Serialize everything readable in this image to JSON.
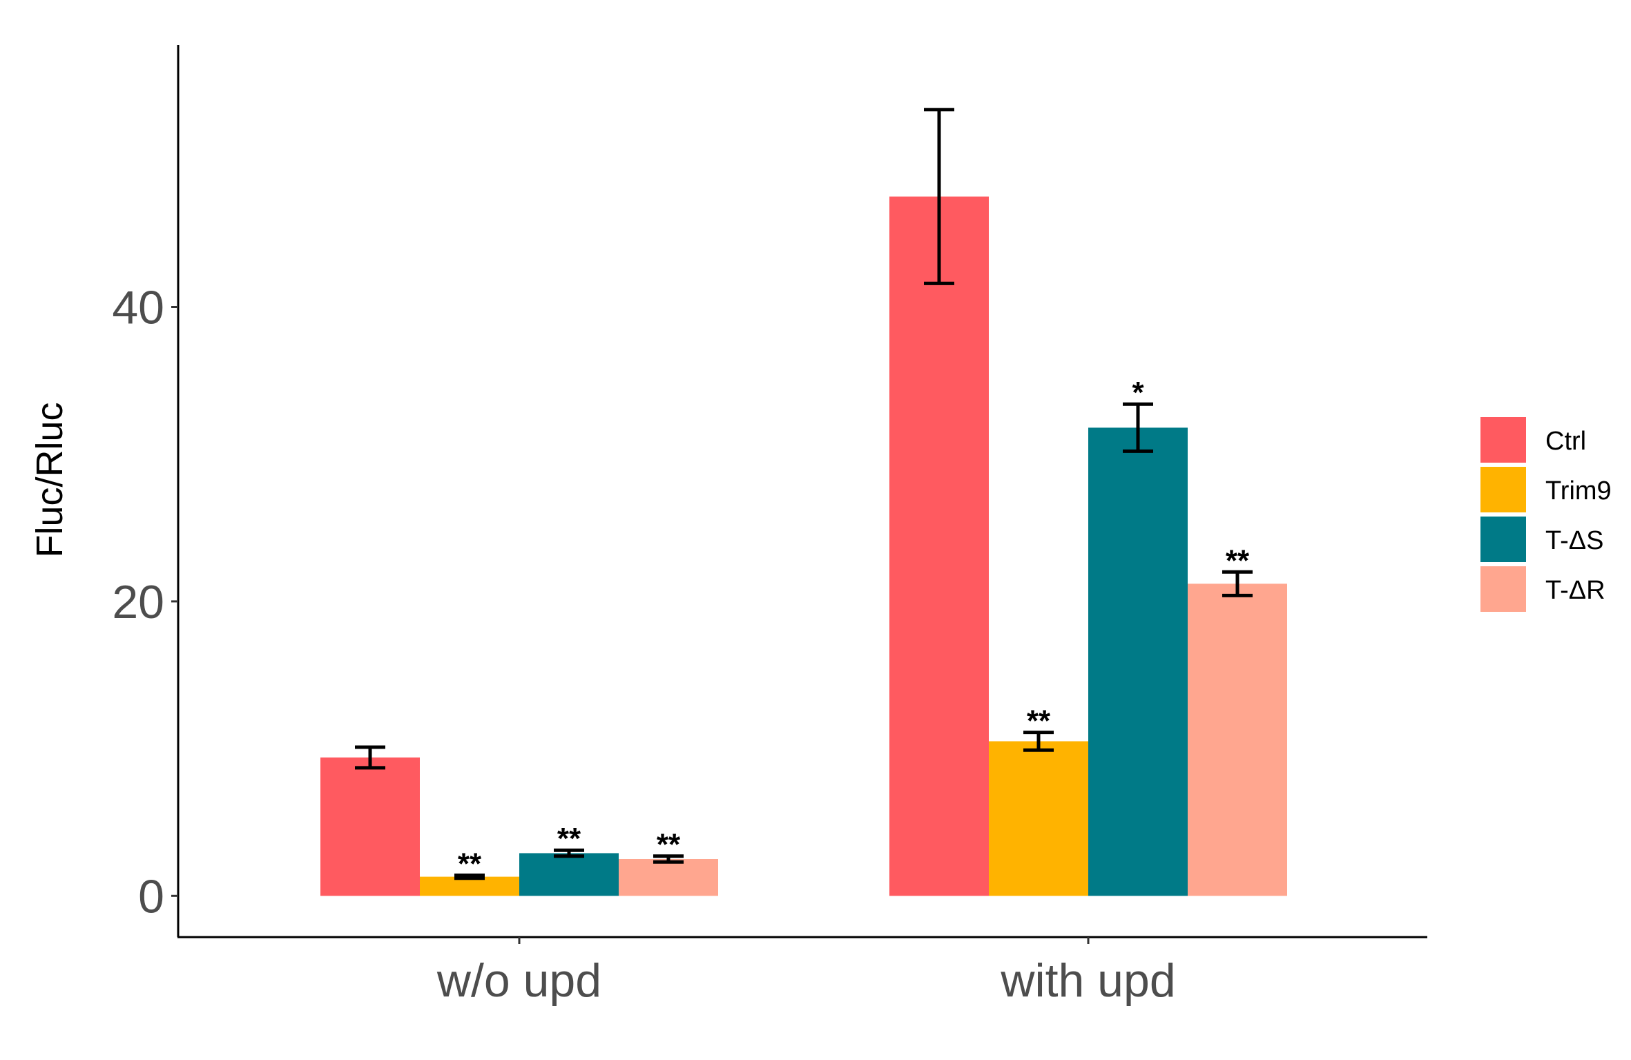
{
  "chart_data": {
    "type": "bar",
    "title": "",
    "xlabel": "",
    "ylabel": "Fluc/Rluc",
    "categories": [
      "w/o upd",
      "with upd"
    ],
    "ylim": [
      -2.8,
      57.8
    ],
    "yticks": [
      0,
      20,
      40
    ],
    "grid": false,
    "legend_position": "right",
    "series": [
      {
        "name": "Ctrl",
        "color": "#FF5A60",
        "values": [
          9.4,
          47.5
        ],
        "errors": [
          0.7,
          5.9
        ],
        "significance": [
          "",
          ""
        ]
      },
      {
        "name": "Trim9",
        "color": "#FFB300",
        "values": [
          1.3,
          10.5
        ],
        "errors": [
          0.1,
          0.6
        ],
        "significance": [
          "**",
          "**"
        ]
      },
      {
        "name": "T-ΔS",
        "color": "#007A87",
        "values": [
          2.9,
          31.8
        ],
        "errors": [
          0.2,
          1.6
        ],
        "significance": [
          "**",
          "*"
        ]
      },
      {
        "name": "T-ΔR",
        "color": "#FFA68F",
        "values": [
          2.5,
          21.2
        ],
        "errors": [
          0.2,
          0.8
        ],
        "significance": [
          "**",
          "**"
        ]
      }
    ]
  }
}
